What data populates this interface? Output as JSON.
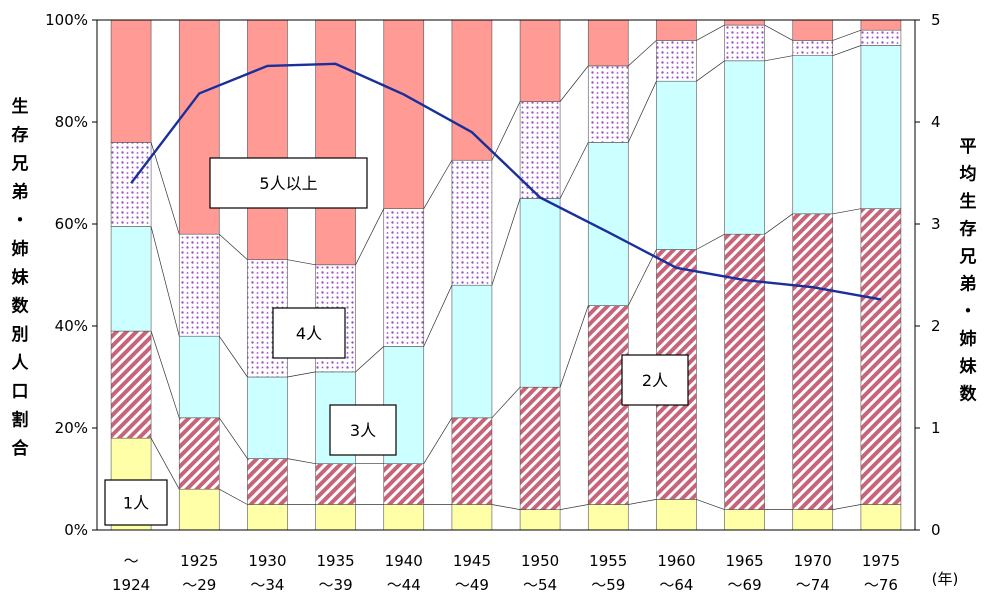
{
  "chart_data": {
    "type": "bar",
    "stacked": true,
    "categories": [
      [
        "〜",
        "1924"
      ],
      [
        "1925",
        "〜29"
      ],
      [
        "1930",
        "〜34"
      ],
      [
        "1935",
        "〜39"
      ],
      [
        "1940",
        "〜44"
      ],
      [
        "1945",
        "〜49"
      ],
      [
        "1950",
        "〜54"
      ],
      [
        "1955",
        "〜59"
      ],
      [
        "1960",
        "〜64"
      ],
      [
        "1965",
        "〜69"
      ],
      [
        "1970",
        "〜74"
      ],
      [
        "1975",
        "〜76"
      ]
    ],
    "x_unit": "(年)",
    "ylabel": "生存兄弟・姉妹数別人口割合",
    "ylabel_right": "平均生存兄弟・姉妹数",
    "y_ticks": [
      "0%",
      "20%",
      "40%",
      "60%",
      "80%",
      "100%"
    ],
    "y2_ticks": [
      "0",
      "1",
      "2",
      "3",
      "4",
      "5"
    ],
    "ylim": [
      0,
      100
    ],
    "y2lim": [
      0,
      5
    ],
    "series": [
      {
        "name": "1人",
        "color": "#ffffa8",
        "pattern": "solid",
        "values": [
          18,
          8,
          5,
          5,
          5,
          5,
          4,
          5,
          6,
          4,
          4,
          5
        ]
      },
      {
        "name": "2人",
        "color": "#c8647a",
        "pattern": "diagonal",
        "values": [
          21,
          14,
          9,
          8,
          8,
          17,
          24,
          39,
          49,
          54,
          58,
          58
        ]
      },
      {
        "name": "3人",
        "color": "#ccffff",
        "pattern": "solid",
        "values": [
          20.5,
          16,
          16,
          18,
          23,
          26,
          37,
          32,
          33,
          34,
          31,
          32
        ]
      },
      {
        "name": "4人",
        "color": "#a050c8",
        "pattern": "dots",
        "values": [
          16.5,
          20,
          23,
          21,
          27,
          24.5,
          19,
          15,
          8,
          7,
          3,
          3
        ]
      },
      {
        "name": "5人以上",
        "color": "#ff9a94",
        "pattern": "solid",
        "values": [
          24,
          42,
          47,
          48,
          37,
          27.5,
          16,
          9,
          4,
          1,
          4,
          2
        ]
      }
    ],
    "average": {
      "values": [
        3.4,
        4.28,
        4.55,
        4.57,
        4.27,
        3.9,
        3.26,
        2.92,
        2.57,
        2.45,
        2.38,
        2.26
      ],
      "color": "#1a2f9c"
    },
    "grid": false
  }
}
